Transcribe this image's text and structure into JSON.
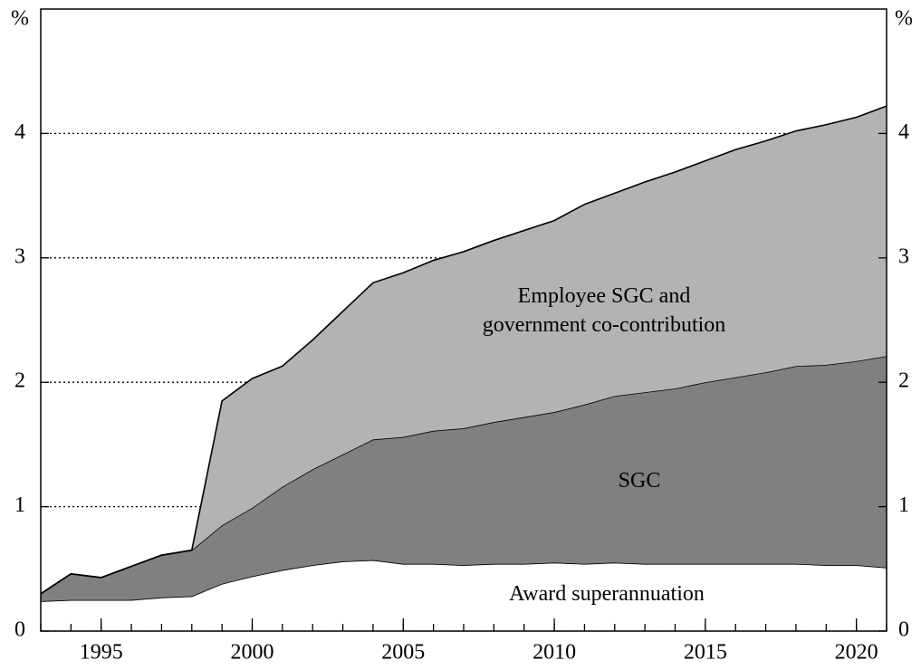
{
  "chart_data": {
    "type": "stacked_area",
    "y_unit_label": "%",
    "x": [
      1993,
      1994,
      1995,
      1996,
      1997,
      1998,
      1999,
      2000,
      2001,
      2002,
      2003,
      2004,
      2005,
      2006,
      2007,
      2008,
      2009,
      2010,
      2011,
      2012,
      2013,
      2014,
      2015,
      2016,
      2017,
      2018,
      2019,
      2020,
      2021
    ],
    "series": [
      {
        "name": "Award superannuation",
        "color": "#ffffff",
        "values": [
          0.24,
          0.25,
          0.25,
          0.25,
          0.27,
          0.28,
          0.38,
          0.44,
          0.49,
          0.53,
          0.56,
          0.57,
          0.54,
          0.54,
          0.53,
          0.54,
          0.54,
          0.55,
          0.54,
          0.55,
          0.54,
          0.54,
          0.54,
          0.54,
          0.54,
          0.54,
          0.53,
          0.53,
          0.51
        ]
      },
      {
        "name": "SGC",
        "color": "#808080",
        "values": [
          0.06,
          0.21,
          0.18,
          0.27,
          0.34,
          0.37,
          0.47,
          0.55,
          0.67,
          0.77,
          0.86,
          0.97,
          1.02,
          1.07,
          1.1,
          1.14,
          1.18,
          1.21,
          1.28,
          1.34,
          1.38,
          1.41,
          1.46,
          1.5,
          1.54,
          1.59,
          1.61,
          1.64,
          1.7
        ]
      },
      {
        "name": "Employee SGC and government co-contribution",
        "color": "#b3b3b3",
        "values": [
          0,
          0,
          0,
          0,
          0,
          0,
          1.0,
          1.04,
          0.97,
          1.04,
          1.15,
          1.26,
          1.32,
          1.37,
          1.42,
          1.46,
          1.5,
          1.54,
          1.61,
          1.63,
          1.69,
          1.74,
          1.78,
          1.83,
          1.86,
          1.89,
          1.93,
          1.96,
          2.01
        ]
      }
    ],
    "xlim": [
      1993,
      2021
    ],
    "xticks": [
      1995,
      2000,
      2005,
      2010,
      2015,
      2020
    ],
    "ylim": [
      0,
      5
    ],
    "yticks": [
      0,
      1,
      2,
      3,
      4
    ],
    "grid": true
  }
}
